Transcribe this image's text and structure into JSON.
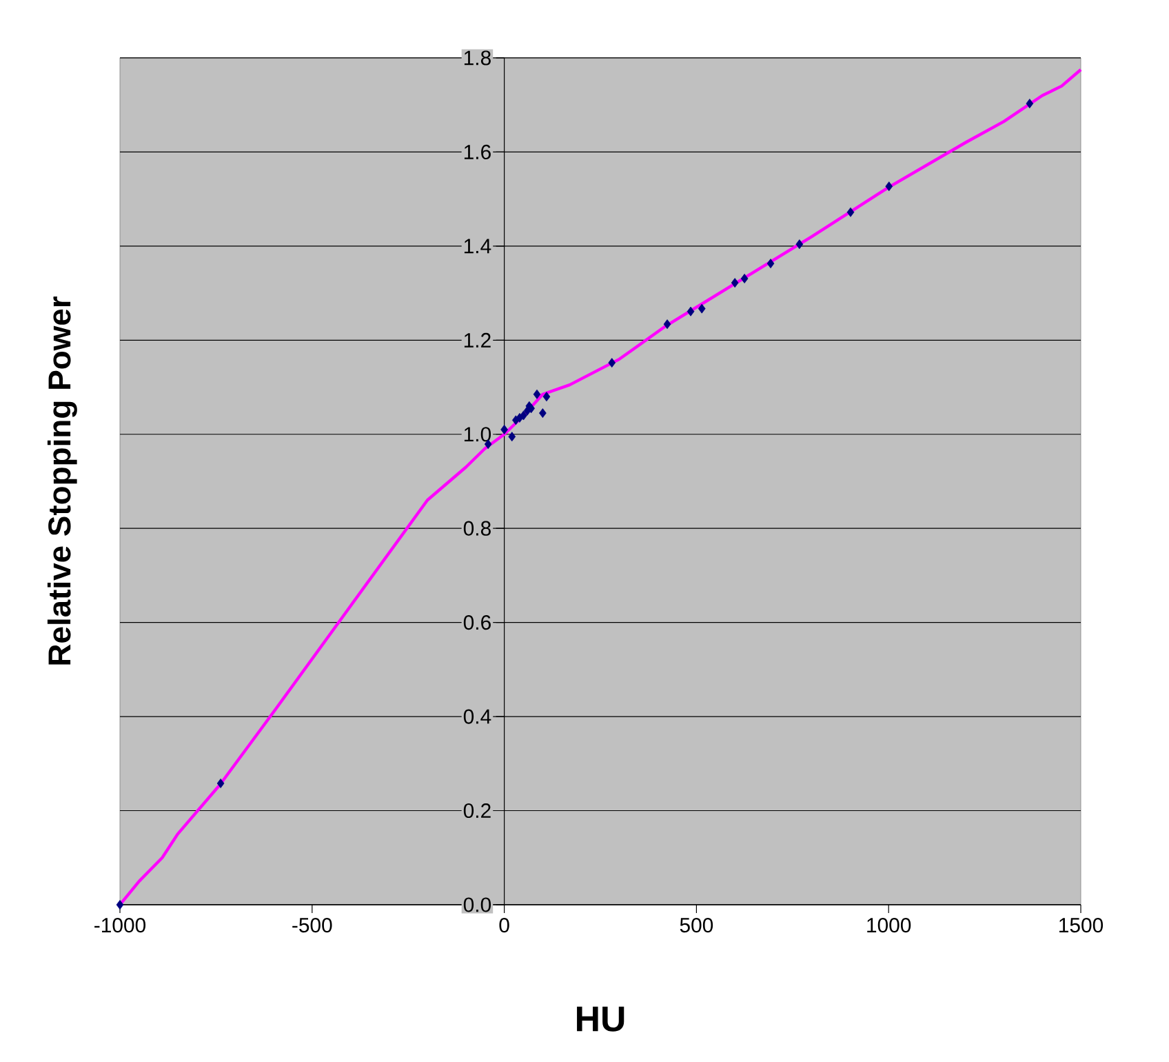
{
  "chart_data": {
    "type": "scatter",
    "xlabel": "HU",
    "ylabel": "Relative Stopping Power",
    "xlim": [
      -1000,
      1500
    ],
    "ylim": [
      0,
      1.8
    ],
    "xticks": [
      -1000,
      -500,
      0,
      500,
      1000,
      1500
    ],
    "yticks": [
      {
        "value": 0,
        "label": "0.0"
      },
      {
        "value": 0.2,
        "label": "0.2"
      },
      {
        "value": 0.4,
        "label": "0.4"
      },
      {
        "value": 0.6,
        "label": "0.6"
      },
      {
        "value": 0.8,
        "label": "0.8"
      },
      {
        "value": 1.0,
        "label": "1.0"
      },
      {
        "value": 1.2,
        "label": "1.2"
      },
      {
        "value": 1.4,
        "label": "1.4"
      },
      {
        "value": 1.6,
        "label": "1.6"
      },
      {
        "value": 1.8,
        "label": "1.8"
      }
    ],
    "grid": "y",
    "series": [
      {
        "type": "line",
        "color": "#ff00ff",
        "marker": "none",
        "line_style": "solid",
        "x": [
          -1000,
          -950,
          -890,
          -850,
          -740,
          -600,
          -400,
          -200,
          -100,
          -50,
          0,
          50,
          100,
          170,
          300,
          420,
          600,
          800,
          1000,
          1200,
          1300,
          1400,
          1450,
          1500
        ],
        "values": [
          0,
          0.05,
          0.1,
          0.15,
          0.255,
          0.41,
          0.635,
          0.86,
          0.93,
          0.97,
          1.0,
          1.04,
          1.085,
          1.105,
          1.16,
          1.23,
          1.32,
          1.42,
          1.525,
          1.62,
          1.665,
          1.72,
          1.74,
          1.775
        ]
      },
      {
        "type": "scatter",
        "color": "#000080",
        "marker": "diamond",
        "x": [
          -1000,
          -738,
          -42,
          0,
          20,
          30,
          40,
          50,
          60,
          65,
          70,
          85,
          100,
          110,
          280,
          424,
          485,
          514,
          600,
          625,
          693,
          768,
          901,
          1001,
          1367
        ],
        "values": [
          0,
          0.258,
          0.979,
          1.01,
          0.995,
          1.03,
          1.035,
          1.04,
          1.05,
          1.06,
          1.055,
          1.085,
          1.045,
          1.08,
          1.152,
          1.234,
          1.261,
          1.267,
          1.322,
          1.331,
          1.363,
          1.404,
          1.472,
          1.527,
          1.703
        ]
      }
    ]
  }
}
